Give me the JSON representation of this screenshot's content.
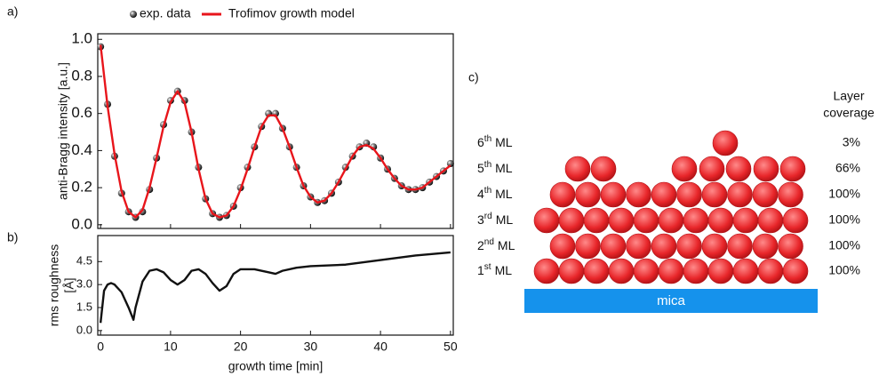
{
  "panel_labels": [
    "a)",
    "b)",
    "c)"
  ],
  "chart_data": [
    {
      "type": "line",
      "ylabel": "anti-Bragg intensity [a.u.]",
      "xlim": [
        -0.4,
        50.4
      ],
      "ylim": [
        -0.02,
        1.03
      ],
      "yticks": [
        {
          "value": 0,
          "label": "0.0"
        },
        {
          "value": 0.2,
          "label": "0.2"
        },
        {
          "value": 0.4,
          "label": "0.4"
        },
        {
          "value": 0.6,
          "label": "0.6"
        },
        {
          "value": 0.8,
          "label": "0.8"
        },
        {
          "value": 1,
          "label": "1.0"
        }
      ],
      "x": [
        0,
        1,
        2,
        3,
        4,
        5,
        6,
        7,
        8,
        9,
        10,
        11,
        12,
        13,
        14,
        15,
        16,
        17,
        18,
        19,
        20,
        21,
        22,
        23,
        24,
        25,
        26,
        27,
        28,
        29,
        30,
        31,
        32,
        33,
        34,
        35,
        36,
        37,
        38,
        39,
        40,
        41,
        42,
        43,
        44,
        45,
        46,
        47,
        48,
        49,
        50
      ],
      "series": [
        {
          "name": "exp. data",
          "type": "scatter",
          "color": "#1a1a1a",
          "values": [
            0.96,
            0.65,
            0.37,
            0.17,
            0.07,
            0.04,
            0.07,
            0.19,
            0.36,
            0.54,
            0.67,
            0.72,
            0.67,
            0.5,
            0.31,
            0.14,
            0.06,
            0.04,
            0.05,
            0.1,
            0.2,
            0.31,
            0.42,
            0.53,
            0.6,
            0.6,
            0.52,
            0.42,
            0.31,
            0.21,
            0.15,
            0.12,
            0.13,
            0.17,
            0.23,
            0.31,
            0.37,
            0.42,
            0.44,
            0.42,
            0.36,
            0.3,
            0.25,
            0.21,
            0.19,
            0.19,
            0.2,
            0.23,
            0.26,
            0.29,
            0.33
          ]
        },
        {
          "name": "Trofimov growth model",
          "type": "line",
          "color": "#e8151b",
          "values": [
            0.97,
            0.64,
            0.38,
            0.18,
            0.07,
            0.04,
            0.08,
            0.2,
            0.36,
            0.53,
            0.66,
            0.72,
            0.66,
            0.5,
            0.3,
            0.14,
            0.06,
            0.04,
            0.05,
            0.1,
            0.19,
            0.3,
            0.42,
            0.53,
            0.59,
            0.59,
            0.52,
            0.42,
            0.31,
            0.21,
            0.15,
            0.12,
            0.13,
            0.17,
            0.23,
            0.3,
            0.37,
            0.42,
            0.43,
            0.41,
            0.36,
            0.3,
            0.25,
            0.21,
            0.19,
            0.19,
            0.2,
            0.23,
            0.26,
            0.29,
            0.32
          ]
        }
      ]
    },
    {
      "type": "line",
      "ylabel": [
        "rms roughness",
        "[Å]"
      ],
      "xlabel": "growth time [min]",
      "xlim": [
        -0.4,
        50.4
      ],
      "ylim": [
        -0.3,
        6.2
      ],
      "xticks": [
        0,
        10,
        20,
        30,
        40,
        50
      ],
      "yticks": [
        {
          "value": 0,
          "label": "0.0"
        },
        {
          "value": 1.5,
          "label": "1.5"
        },
        {
          "value": 3,
          "label": "3.0"
        },
        {
          "value": 4.5,
          "label": "4.5"
        }
      ],
      "x": [
        0,
        0.5,
        1,
        1.5,
        2,
        3,
        4,
        4.7,
        5,
        6,
        7,
        8,
        9,
        10,
        11,
        12,
        13,
        14,
        15,
        16,
        17,
        18,
        19,
        20,
        22,
        24,
        25,
        26,
        28,
        30,
        35,
        40,
        45,
        50
      ],
      "series": [
        {
          "name": "rms roughness",
          "type": "line",
          "color": "#111111",
          "values": [
            0.5,
            2.6,
            3.0,
            3.1,
            3.0,
            2.5,
            1.5,
            0.7,
            1.5,
            3.2,
            3.9,
            4.0,
            3.8,
            3.3,
            3.0,
            3.3,
            3.9,
            4.0,
            3.7,
            3.1,
            2.6,
            2.9,
            3.7,
            4.0,
            4.0,
            3.8,
            3.7,
            3.9,
            4.1,
            4.2,
            4.3,
            4.6,
            4.9,
            5.1
          ]
        }
      ]
    }
  ],
  "diagram": {
    "coverage_header": [
      "Layer",
      "coverage"
    ],
    "layers": [
      {
        "num": "6",
        "sup": "th",
        "unit": "ML",
        "coverage": "3%"
      },
      {
        "num": "5",
        "sup": "th",
        "unit": "ML",
        "coverage": "66%"
      },
      {
        "num": "4",
        "sup": "th",
        "unit": "ML",
        "coverage": "100%"
      },
      {
        "num": "3",
        "sup": "rd",
        "unit": "ML",
        "coverage": "100%"
      },
      {
        "num": "2",
        "sup": "nd",
        "unit": "ML",
        "coverage": "100%"
      },
      {
        "num": "1",
        "sup": "st",
        "unit": "ML",
        "coverage": "100%"
      }
    ],
    "substrate": "mica"
  }
}
